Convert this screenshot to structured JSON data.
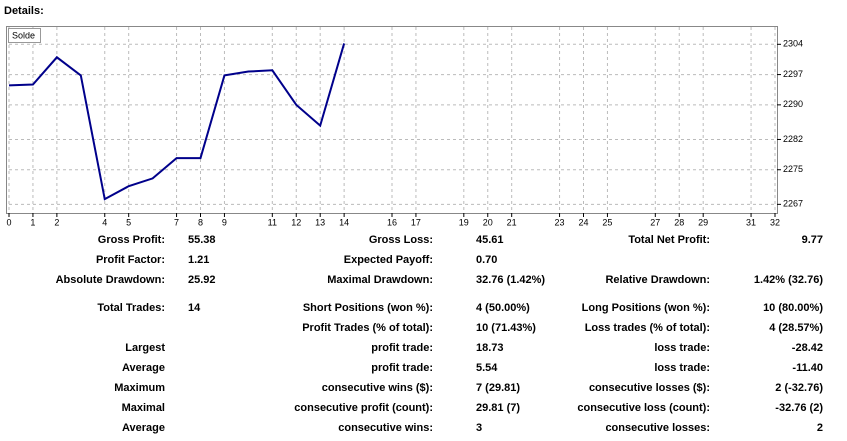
{
  "header": {
    "title": "Details:"
  },
  "chart_data": {
    "type": "line",
    "legend": "Solde",
    "x": [
      0,
      1,
      2,
      3,
      4,
      5,
      6,
      7,
      8,
      9,
      10,
      11,
      12,
      13,
      14
    ],
    "series": [
      {
        "name": "Solde",
        "color": "#00008b",
        "values": [
          2294.5,
          2294.7,
          2301.0,
          2296.8,
          2268.2,
          2271.2,
          2273.0,
          2277.7,
          2277.7,
          2296.8,
          2297.7,
          2298.0,
          2290.0,
          2285.2,
          2304.2
        ]
      }
    ],
    "xlim": [
      0,
      32
    ],
    "xticks": [
      0,
      1,
      2,
      4,
      5,
      7,
      8,
      9,
      11,
      12,
      13,
      14,
      16,
      17,
      19,
      20,
      21,
      23,
      24,
      25,
      27,
      28,
      29,
      31,
      32
    ],
    "ylim": [
      2265,
      2308
    ],
    "yticks": [
      2267,
      2275,
      2282,
      2290,
      2297,
      2304
    ],
    "grid": true
  },
  "stats": {
    "rows": [
      {
        "l1": "Gross Profit:",
        "v1": "55.38",
        "l2": "Gross Loss:",
        "v2": "45.61",
        "l3": "Total Net Profit:",
        "v3": "9.77"
      },
      {
        "l1": "Profit Factor:",
        "v1": "1.21",
        "l2": "Expected Payoff:",
        "v2": "0.70"
      },
      {
        "l1": "Absolute Drawdown:",
        "v1": "25.92",
        "l2": "Maximal Drawdown:",
        "v2": "32.76 (1.42%)",
        "l3": "Relative Drawdown:",
        "v3": "1.42% (32.76)"
      },
      {
        "l1": "Total Trades:",
        "v1": "14",
        "l2": "Short Positions (won %):",
        "v2": "4 (50.00%)",
        "l3": "Long Positions (won %):",
        "v3": "10 (80.00%)"
      },
      {
        "l2": "Profit Trades (% of total):",
        "v2": "10 (71.43%)",
        "l3": "Loss trades (% of total):",
        "v3": "4 (28.57%)"
      },
      {
        "l1": "Largest",
        "l2": "profit trade:",
        "v2": "18.73",
        "l3": "loss trade:",
        "v3": "-28.42"
      },
      {
        "l1": "Average",
        "l2": "profit trade:",
        "v2": "5.54",
        "l3": "loss trade:",
        "v3": "-11.40"
      },
      {
        "l1": "Maximum",
        "l2": "consecutive wins ($):",
        "v2": "7 (29.81)",
        "l3": "consecutive losses ($):",
        "v3": "2 (-32.76)"
      },
      {
        "l1": "Maximal",
        "l2": "consecutive profit (count):",
        "v2": "29.81 (7)",
        "l3": "consecutive loss (count):",
        "v3": "-32.76 (2)"
      },
      {
        "l1": "Average",
        "l2": "consecutive wins:",
        "v2": "3",
        "l3": "consecutive losses:",
        "v3": "2"
      }
    ]
  }
}
